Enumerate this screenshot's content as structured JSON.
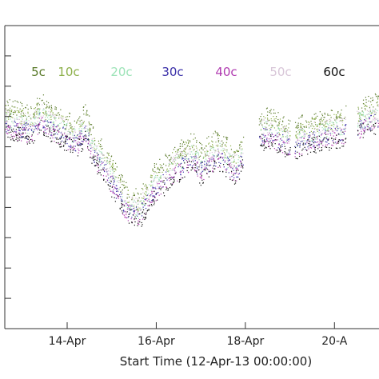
{
  "chart_data": {
    "type": "scatter",
    "title": "",
    "xlabel": "Start Time (12-Apr-13 00:00:00)",
    "ylabel": "",
    "x_unit": "days",
    "xlim": [
      12.6,
      21.0
    ],
    "ylim": [
      0,
      10
    ],
    "x_ticks": [
      {
        "value": 14.0,
        "label": "14-Apr"
      },
      {
        "value": 16.0,
        "label": "16-Apr"
      },
      {
        "value": 18.0,
        "label": "18-Apr"
      },
      {
        "value": 20.0,
        "label": "20-A"
      }
    ],
    "grid": false,
    "legend_position": "top",
    "series": [
      {
        "name": "5c",
        "color": "#5a7a2a",
        "offset": 0.55,
        "x": [
          12.6,
          12.9,
          13.2,
          13.4,
          13.6,
          13.9,
          14.2,
          14.4,
          14.6,
          14.9,
          15.1,
          15.3,
          15.6,
          15.9,
          16.2,
          16.5,
          16.8,
          17.0,
          17.2,
          17.4,
          17.6,
          17.8,
          18.0,
          18.2,
          18.5,
          18.8,
          19.0,
          19.2,
          19.6,
          20.0,
          20.3,
          20.6,
          21.0
        ],
        "y": [
          6.8,
          6.7,
          6.6,
          7.0,
          6.7,
          6.5,
          6.2,
          6.6,
          5.8,
          5.2,
          4.6,
          4.1,
          3.8,
          4.6,
          5.0,
          5.4,
          5.7,
          5.3,
          5.6,
          5.8,
          5.5,
          5.3,
          5.9,
          6.4,
          6.5,
          6.3,
          6.1,
          6.2,
          6.4,
          6.5,
          6.6,
          6.8,
          7.0
        ]
      },
      {
        "name": "10c",
        "color": "#8db04a",
        "offset": 0.35,
        "x": [
          12.6,
          12.9,
          13.2,
          13.4,
          13.6,
          13.9,
          14.2,
          14.4,
          14.6,
          14.9,
          15.1,
          15.3,
          15.6,
          15.9,
          16.2,
          16.5,
          16.8,
          17.0,
          17.2,
          17.4,
          17.6,
          17.8,
          18.0,
          18.2,
          18.5,
          18.8,
          19.0,
          19.2,
          19.6,
          20.0,
          20.3,
          20.6,
          21.0
        ],
        "y": [
          6.8,
          6.7,
          6.6,
          7.0,
          6.7,
          6.5,
          6.2,
          6.6,
          5.8,
          5.2,
          4.6,
          4.1,
          3.8,
          4.6,
          5.0,
          5.4,
          5.7,
          5.3,
          5.6,
          5.8,
          5.5,
          5.3,
          5.9,
          6.4,
          6.5,
          6.3,
          6.1,
          6.2,
          6.4,
          6.5,
          6.6,
          6.8,
          7.0
        ]
      },
      {
        "name": "20c",
        "color": "#9de3b8",
        "offset": 0.1,
        "x": [
          12.6,
          12.9,
          13.2,
          13.4,
          13.6,
          13.9,
          14.2,
          14.4,
          14.6,
          14.9,
          15.1,
          15.3,
          15.6,
          15.9,
          16.2,
          16.5,
          16.8,
          17.0,
          17.2,
          17.4,
          17.6,
          17.8,
          18.0,
          18.2,
          18.5,
          18.8,
          19.0,
          19.2,
          19.6,
          20.0,
          20.3,
          20.6,
          21.0
        ],
        "y": [
          6.8,
          6.7,
          6.6,
          7.0,
          6.7,
          6.5,
          6.2,
          6.6,
          5.8,
          5.2,
          4.6,
          4.1,
          3.8,
          4.6,
          5.0,
          5.4,
          5.7,
          5.3,
          5.6,
          5.8,
          5.5,
          5.3,
          5.9,
          6.4,
          6.5,
          6.3,
          6.1,
          6.2,
          6.4,
          6.5,
          6.6,
          6.8,
          7.0
        ]
      },
      {
        "name": "30c",
        "color": "#3a2fa8",
        "offset": -0.1,
        "x": [
          12.6,
          12.9,
          13.2,
          13.4,
          13.6,
          13.9,
          14.2,
          14.4,
          14.6,
          14.9,
          15.1,
          15.3,
          15.6,
          15.9,
          16.2,
          16.5,
          16.8,
          17.0,
          17.2,
          17.4,
          17.6,
          17.8,
          18.0,
          18.2,
          18.5,
          18.8,
          19.0,
          19.2,
          19.6,
          20.0,
          20.3,
          20.6,
          21.0
        ],
        "y": [
          6.8,
          6.7,
          6.6,
          7.0,
          6.7,
          6.5,
          6.2,
          6.6,
          5.8,
          5.2,
          4.6,
          4.1,
          3.8,
          4.6,
          5.0,
          5.4,
          5.7,
          5.3,
          5.6,
          5.8,
          5.5,
          5.3,
          5.9,
          6.4,
          6.5,
          6.3,
          6.1,
          6.2,
          6.4,
          6.5,
          6.6,
          6.8,
          7.0
        ]
      },
      {
        "name": "40c",
        "color": "#b03ab0",
        "offset": -0.2,
        "x": [
          12.6,
          12.9,
          13.2,
          13.4,
          13.6,
          13.9,
          14.2,
          14.4,
          14.6,
          14.9,
          15.1,
          15.3,
          15.6,
          15.9,
          16.2,
          16.5,
          16.8,
          17.0,
          17.2,
          17.4,
          17.6,
          17.8,
          18.0,
          18.2,
          18.5,
          18.8,
          19.0,
          19.2,
          19.6,
          20.0,
          20.3,
          20.6,
          21.0
        ],
        "y": [
          6.8,
          6.7,
          6.6,
          7.0,
          6.7,
          6.5,
          6.2,
          6.6,
          5.8,
          5.2,
          4.6,
          4.1,
          3.8,
          4.6,
          5.0,
          5.4,
          5.7,
          5.3,
          5.6,
          5.8,
          5.5,
          5.3,
          5.9,
          6.4,
          6.5,
          6.3,
          6.1,
          6.2,
          6.4,
          6.5,
          6.6,
          6.8,
          7.0
        ]
      },
      {
        "name": "50c",
        "color": "#d8c6d8",
        "offset": 0.2,
        "x": [
          12.6,
          12.9,
          13.2,
          13.4,
          13.6,
          13.9,
          14.2,
          14.4,
          14.6,
          14.9,
          15.1,
          15.3,
          15.6,
          15.9,
          16.2,
          16.5,
          16.8,
          17.0,
          17.2,
          17.4,
          17.6,
          17.8,
          18.0,
          18.2,
          18.5,
          18.8,
          19.0,
          19.2,
          19.6,
          20.0,
          20.3,
          20.6,
          21.0
        ],
        "y": [
          6.8,
          6.7,
          6.6,
          7.0,
          6.7,
          6.5,
          6.2,
          6.6,
          5.8,
          5.2,
          4.6,
          4.1,
          3.8,
          4.6,
          5.0,
          5.4,
          5.7,
          5.3,
          5.6,
          5.8,
          5.5,
          5.3,
          5.9,
          6.4,
          6.5,
          6.3,
          6.1,
          6.2,
          6.4,
          6.5,
          6.6,
          6.8,
          7.0
        ]
      },
      {
        "name": "60c",
        "color": "#111111",
        "offset": -0.3,
        "x": [
          12.6,
          12.9,
          13.2,
          13.4,
          13.6,
          13.9,
          14.2,
          14.4,
          14.6,
          14.9,
          15.1,
          15.3,
          15.6,
          15.9,
          16.2,
          16.5,
          16.8,
          17.0,
          17.2,
          17.4,
          17.6,
          17.8,
          18.0,
          18.2,
          18.5,
          18.8,
          19.0,
          19.2,
          19.6,
          20.0,
          20.3,
          20.6,
          21.0
        ],
        "y": [
          6.8,
          6.7,
          6.6,
          7.0,
          6.7,
          6.5,
          6.2,
          6.6,
          5.8,
          5.2,
          4.6,
          4.1,
          3.8,
          4.6,
          5.0,
          5.4,
          5.7,
          5.3,
          5.6,
          5.8,
          5.5,
          5.3,
          5.9,
          6.4,
          6.5,
          6.3,
          6.1,
          6.2,
          6.4,
          6.5,
          6.6,
          6.8,
          7.0
        ]
      }
    ]
  }
}
